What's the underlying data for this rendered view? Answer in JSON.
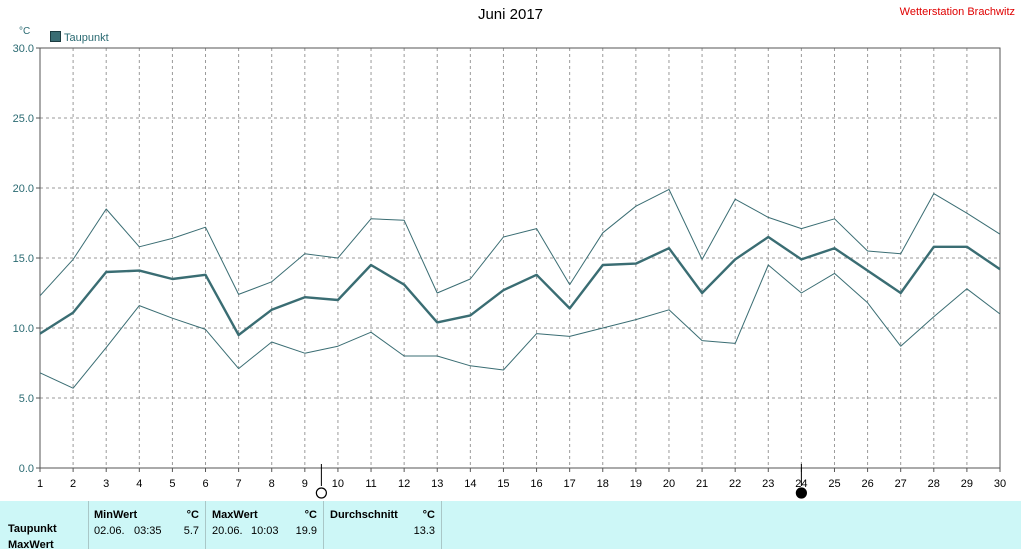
{
  "header": {
    "title": "Juni 2017",
    "station": "Wetterstation Brachwitz",
    "unit_label": "°C",
    "legend_label": "Taupunkt"
  },
  "chart_data": {
    "type": "line",
    "title": "Juni 2017",
    "ylabel": "°C",
    "ylim": [
      0,
      30
    ],
    "y_ticks": [
      "0.0",
      "5.0",
      "10.0",
      "15.0",
      "20.0",
      "25.0",
      "30.0"
    ],
    "x": [
      1,
      2,
      3,
      4,
      5,
      6,
      7,
      8,
      9,
      10,
      11,
      12,
      13,
      14,
      15,
      16,
      17,
      18,
      19,
      20,
      21,
      22,
      23,
      24,
      25,
      26,
      27,
      28,
      29,
      30
    ],
    "xlim": [
      1,
      30
    ],
    "grid": true,
    "legend": "top-left",
    "series": [
      {
        "name": "Taupunkt",
        "role": "mean",
        "color": "#3a6d73",
        "values": [
          9.6,
          11.1,
          14.0,
          14.1,
          13.5,
          13.8,
          9.5,
          11.3,
          12.2,
          12.0,
          14.5,
          13.1,
          10.4,
          10.9,
          12.7,
          13.8,
          11.4,
          14.5,
          14.6,
          15.7,
          12.5,
          14.9,
          16.5,
          14.9,
          15.7,
          14.1,
          12.5,
          15.8,
          15.8,
          14.2
        ]
      },
      {
        "role": "max",
        "color": "#3a6d73",
        "values": [
          12.3,
          14.9,
          18.5,
          15.8,
          16.4,
          17.2,
          12.4,
          13.3,
          15.3,
          15.0,
          17.8,
          17.7,
          12.5,
          13.5,
          16.5,
          17.1,
          13.1,
          16.8,
          18.7,
          19.9,
          14.9,
          19.2,
          17.9,
          17.1,
          17.8,
          15.5,
          15.3,
          19.6,
          18.2,
          16.7
        ]
      },
      {
        "role": "min",
        "color": "#3a6d73",
        "values": [
          6.8,
          5.7,
          8.6,
          11.6,
          10.7,
          9.9,
          7.1,
          9.0,
          8.2,
          8.7,
          9.7,
          8.0,
          8.0,
          7.3,
          7.0,
          9.6,
          9.4,
          10.0,
          10.6,
          11.3,
          9.1,
          8.9,
          14.5,
          12.5,
          13.9,
          11.8,
          8.7,
          10.8,
          12.8,
          11.0
        ]
      }
    ],
    "moon_phases": [
      {
        "day": 9.5,
        "phase": "full-moon"
      },
      {
        "day": 24,
        "phase": "new-moon"
      }
    ]
  },
  "stats": {
    "headers": {
      "min": "MinWert",
      "max": "MaxWert",
      "avg": "Durchschnitt",
      "unit": "°C"
    },
    "rows": [
      {
        "label": "Taupunkt",
        "min_date": "02.06.",
        "min_time": "03:35",
        "min_value": "5.7",
        "max_date": "20.06.",
        "max_time": "10:03",
        "max_value": "19.9",
        "avg_value": "13.3"
      }
    ],
    "cut_off_label": "MaxWert"
  }
}
